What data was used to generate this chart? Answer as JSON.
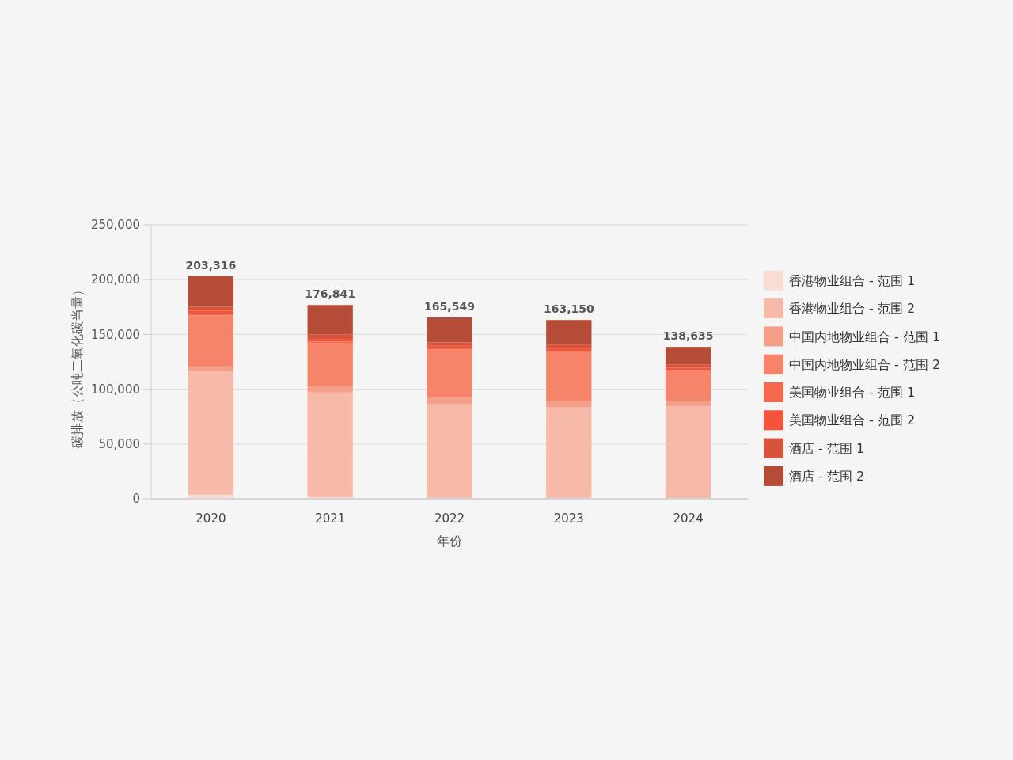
{
  "chart_data": {
    "type": "bar",
    "stacked": true,
    "xlabel": "年份",
    "ylabel": "碳排放（公吨二氧化碳当量）",
    "categories": [
      "2020",
      "2021",
      "2022",
      "2023",
      "2024"
    ],
    "ylim": [
      0,
      250000
    ],
    "yticks": [
      {
        "value": 0,
        "label": "0"
      },
      {
        "value": 50000,
        "label": "50,000"
      },
      {
        "value": 100000,
        "label": "100,000"
      },
      {
        "value": 150000,
        "label": "150,000"
      },
      {
        "value": 200000,
        "label": "200,000"
      },
      {
        "value": 250000,
        "label": "250,000"
      }
    ],
    "grid": "y",
    "legend": "right",
    "totals": [
      "203,316",
      "176,841",
      "165,549",
      "163,150",
      "138,635"
    ],
    "series": [
      {
        "name": "香港物业组合 - 范围 1",
        "color": "#f9ddd5",
        "values": [
          3800,
          1500,
          800,
          800,
          700
        ]
      },
      {
        "name": "香港物业组合 - 范围 2",
        "color": "#f7b9a8",
        "values": [
          112400,
          95500,
          85400,
          82500,
          83500
        ]
      },
      {
        "name": "中国内地物业组合 - 范围 1",
        "color": "#f59f88",
        "values": [
          4600,
          5100,
          6200,
          6200,
          5100
        ]
      },
      {
        "name": "中国内地物业组合 - 范围 2",
        "color": "#f5846a",
        "values": [
          46500,
          40200,
          44100,
          44100,
          27100
        ]
      },
      {
        "name": "美国物业组合 - 范围 1",
        "color": "#f4694c",
        "values": [
          1500,
          1200,
          1000,
          1200,
          1000
        ]
      },
      {
        "name": "美国物业组合 - 范围 2",
        "color": "#f4543a",
        "values": [
          3000,
          2400,
          2100,
          2400,
          2100
        ]
      },
      {
        "name": "酒店 - 范围 1",
        "color": "#d8533b",
        "values": [
          3400,
          4100,
          3100,
          3600,
          3100
        ]
      },
      {
        "name": "酒店 - 范围 2",
        "color": "#b54c38",
        "values": [
          28116,
          26841,
          22849,
          22350,
          16035
        ]
      }
    ]
  }
}
